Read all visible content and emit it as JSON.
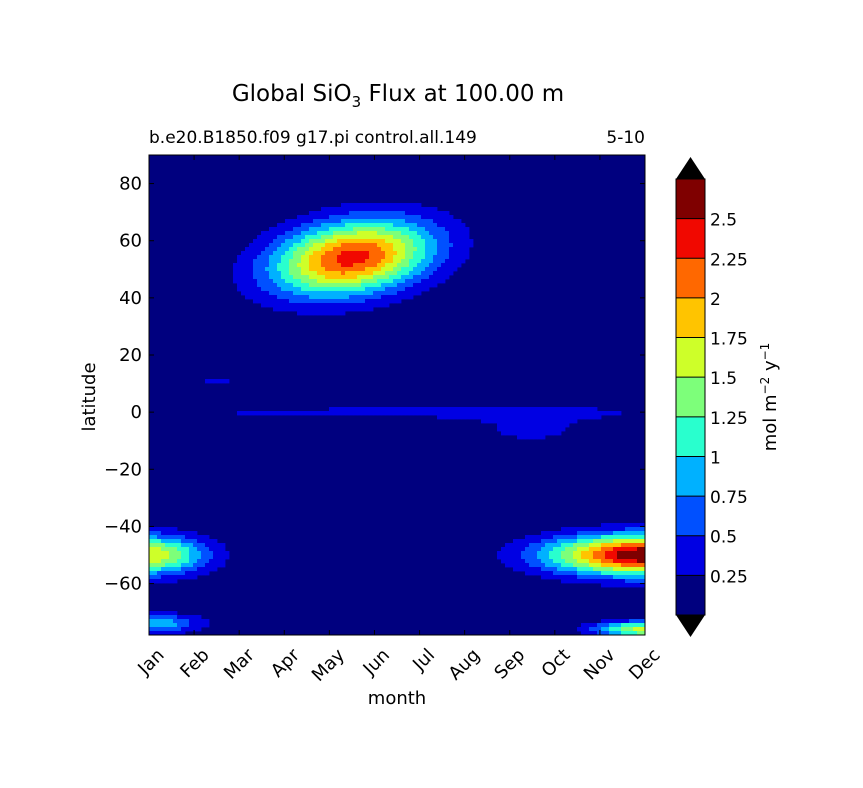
{
  "chart_data": {
    "type": "heatmap",
    "title": {
      "main_before": "Global SiO",
      "main_sub": "3",
      "main_after": " Flux at 100.00 m"
    },
    "subtitle_left": "b.e20.B1850.f09 g17.pi control.all.149",
    "subtitle_right": "5-10",
    "xlabel": "month",
    "ylabel": "latitude",
    "x_ticks": [
      "Jan",
      "Feb",
      "Mar",
      "Apr",
      "May",
      "Jun",
      "Jul",
      "Aug",
      "Sep",
      "Oct",
      "Nov",
      "Dec"
    ],
    "xlim": [
      0,
      11
    ],
    "ylim": [
      -78,
      90
    ],
    "y_ticks": [
      {
        "value": 80,
        "label": "80"
      },
      {
        "value": 60,
        "label": "60"
      },
      {
        "value": 40,
        "label": "40"
      },
      {
        "value": 20,
        "label": "20"
      },
      {
        "value": 0,
        "label": "0"
      },
      {
        "value": -20,
        "label": "−20"
      },
      {
        "value": -40,
        "label": "−40"
      },
      {
        "value": -60,
        "label": "−60"
      }
    ],
    "colorbar": {
      "label_main": "mol m",
      "label_exp1": "−2",
      "label_mid": " y",
      "label_exp2": "−1",
      "extend": "both",
      "levels": [
        0,
        0.25,
        0.5,
        0.75,
        1.0,
        1.25,
        1.5,
        1.75,
        2.0,
        2.25,
        2.5,
        2.75
      ],
      "colors": [
        "#00007f",
        "#0000e3",
        "#0050ff",
        "#00b1ff",
        "#29ffce",
        "#7dff7a",
        "#ceff29",
        "#ffc400",
        "#ff6800",
        "#f10800",
        "#7f0000"
      ],
      "under_color": "#000000",
      "over_color": "#000000",
      "tick_labels": [
        {
          "value": 0.25,
          "label": "0.25"
        },
        {
          "value": 0.5,
          "label": "0.5"
        },
        {
          "value": 0.75,
          "label": "0.75"
        },
        {
          "value": 1.0,
          "label": "1"
        },
        {
          "value": 1.25,
          "label": "1.25"
        },
        {
          "value": 1.5,
          "label": "1.5"
        },
        {
          "value": 1.75,
          "label": "1.75"
        },
        {
          "value": 2.0,
          "label": "2"
        },
        {
          "value": 2.25,
          "label": "2.25"
        },
        {
          "value": 2.5,
          "label": "2.5"
        }
      ]
    },
    "features": [
      {
        "name": "northern-bloom",
        "month": 4.5,
        "lat": 54,
        "month_spread": 1.25,
        "lat_spread": 9,
        "peak": 2.35,
        "skew": 0.25
      },
      {
        "name": "southern-ocean-late",
        "month": 11.0,
        "lat": -50,
        "month_spread": 1.5,
        "lat_spread": 5,
        "peak": 2.75,
        "skew": 0
      },
      {
        "name": "southern-ocean-early",
        "month": 0.0,
        "lat": -50,
        "month_spread": 0.9,
        "lat_spread": 5,
        "peak": 1.7,
        "skew": 0
      },
      {
        "name": "equatorial-band",
        "month": 5.5,
        "lat": 0,
        "month_spread": 6,
        "lat_spread": 2,
        "peak": 0.3,
        "skew": 0
      },
      {
        "name": "equatorial-autumn",
        "month": 8.5,
        "lat": -6,
        "month_spread": 1.2,
        "lat_spread": 5,
        "peak": 0.3,
        "skew": 0
      },
      {
        "name": "antarctic-margin-late",
        "month": 11.0,
        "lat": -76,
        "month_spread": 0.8,
        "lat_spread": 2,
        "peak": 1.6,
        "skew": 0
      },
      {
        "name": "antarctic-margin-early",
        "month": 0.0,
        "lat": -74,
        "month_spread": 0.8,
        "lat_spread": 2.5,
        "peak": 1.0,
        "skew": 0
      },
      {
        "name": "tropical-streak",
        "month": 1.5,
        "lat": 11,
        "month_spread": 0.5,
        "lat_spread": 0.6,
        "peak": 0.3,
        "skew": 0
      }
    ]
  }
}
